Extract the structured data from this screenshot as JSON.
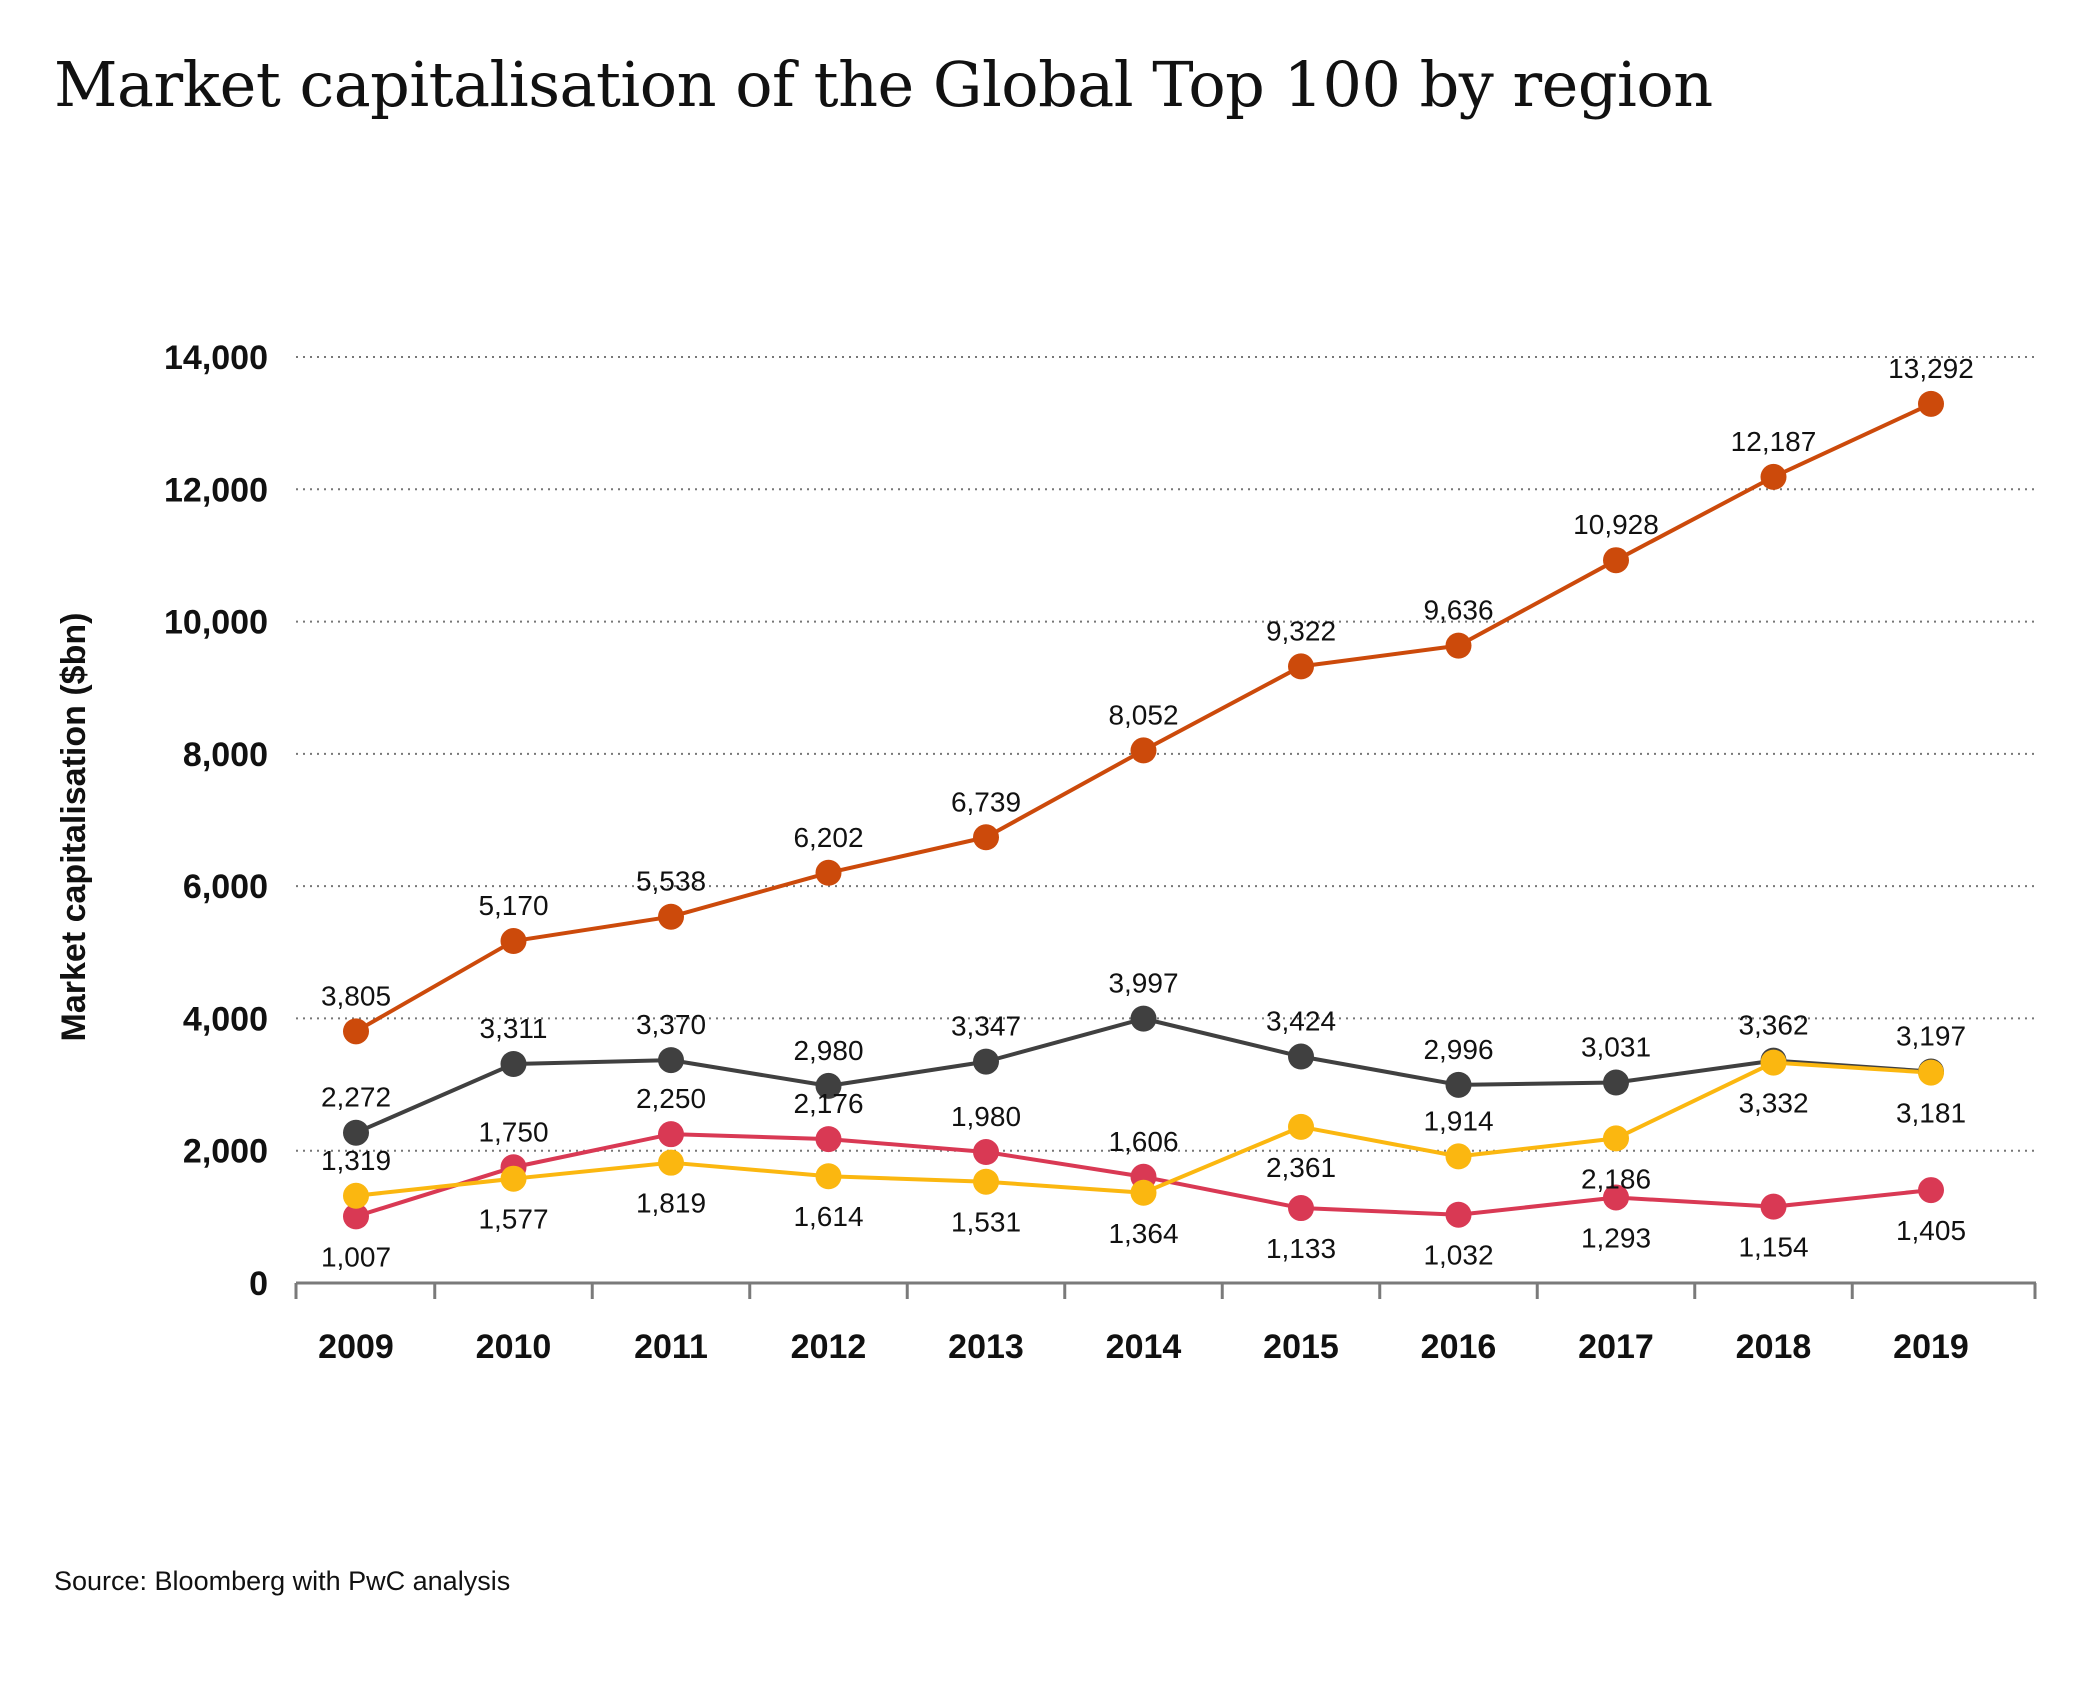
{
  "title": "Market capitalisation of the Global Top 100 by region",
  "source": "Source: Bloomberg with PwC analysis",
  "chart_data": {
    "type": "line",
    "title": "Market capitalisation of the Global Top 100 by region",
    "xlabel": "",
    "ylabel": "Market capitalisation ($bn)",
    "ylim": [
      0,
      14000
    ],
    "yticks": [
      0,
      2000,
      4000,
      6000,
      8000,
      10000,
      12000,
      14000
    ],
    "ytick_labels": [
      "0",
      "2,000",
      "4,000",
      "6,000",
      "8,000",
      "10,000",
      "12,000",
      "14,000"
    ],
    "grid": true,
    "categories": [
      "2009",
      "2010",
      "2011",
      "2012",
      "2013",
      "2014",
      "2015",
      "2016",
      "2017",
      "2018",
      "2019"
    ],
    "series": [
      {
        "color": "#cc4a0b",
        "values": [
          3805,
          5170,
          5538,
          6202,
          6739,
          8052,
          9322,
          9636,
          10928,
          12187,
          13292
        ],
        "labels": [
          "3,805",
          "5,170",
          "5,538",
          "6,202",
          "6,739",
          "8,052",
          "9,322",
          "9,636",
          "10,928",
          "12,187",
          "13,292"
        ],
        "label_pos": [
          "above",
          "above",
          "above",
          "above",
          "above",
          "above",
          "above",
          "above",
          "above",
          "above",
          "above"
        ]
      },
      {
        "color": "#404040",
        "values": [
          2272,
          3311,
          3370,
          2980,
          3347,
          3997,
          3424,
          2996,
          3031,
          3362,
          3197
        ],
        "labels": [
          "2,272",
          "3,311",
          "3,370",
          "2,980",
          "3,347",
          "3,997",
          "3,424",
          "2,996",
          "3,031",
          "3,362",
          "3,197"
        ],
        "label_pos": [
          "above",
          "above",
          "above",
          "above",
          "above",
          "above",
          "above",
          "above",
          "above",
          "above",
          "above"
        ]
      },
      {
        "color": "#d93954",
        "values": [
          1007,
          1750,
          2250,
          2176,
          1980,
          1606,
          1133,
          1032,
          1293,
          1154,
          1405
        ],
        "labels": [
          "1,007",
          "1,750",
          "2,250",
          "2,176",
          "1,980",
          "1,606",
          "1,133",
          "1,032",
          "1,293",
          "1,154",
          "1,405"
        ],
        "label_pos": [
          "below",
          "above",
          "above",
          "above",
          "above",
          "above",
          "below",
          "below",
          "below",
          "below",
          "below"
        ]
      },
      {
        "color": "#fbb710",
        "values": [
          1319,
          1577,
          1819,
          1614,
          1531,
          1364,
          2361,
          1914,
          2186,
          3332,
          3181
        ],
        "labels": [
          "1,319",
          "1,577",
          "1,819",
          "1,614",
          "1,531",
          "1,364",
          "2,361",
          "1,914",
          "2,186",
          "3,332",
          "3,181"
        ],
        "label_pos": [
          "above",
          "below",
          "below",
          "below",
          "below",
          "below",
          "below",
          "above",
          "below",
          "below",
          "below"
        ]
      }
    ]
  }
}
